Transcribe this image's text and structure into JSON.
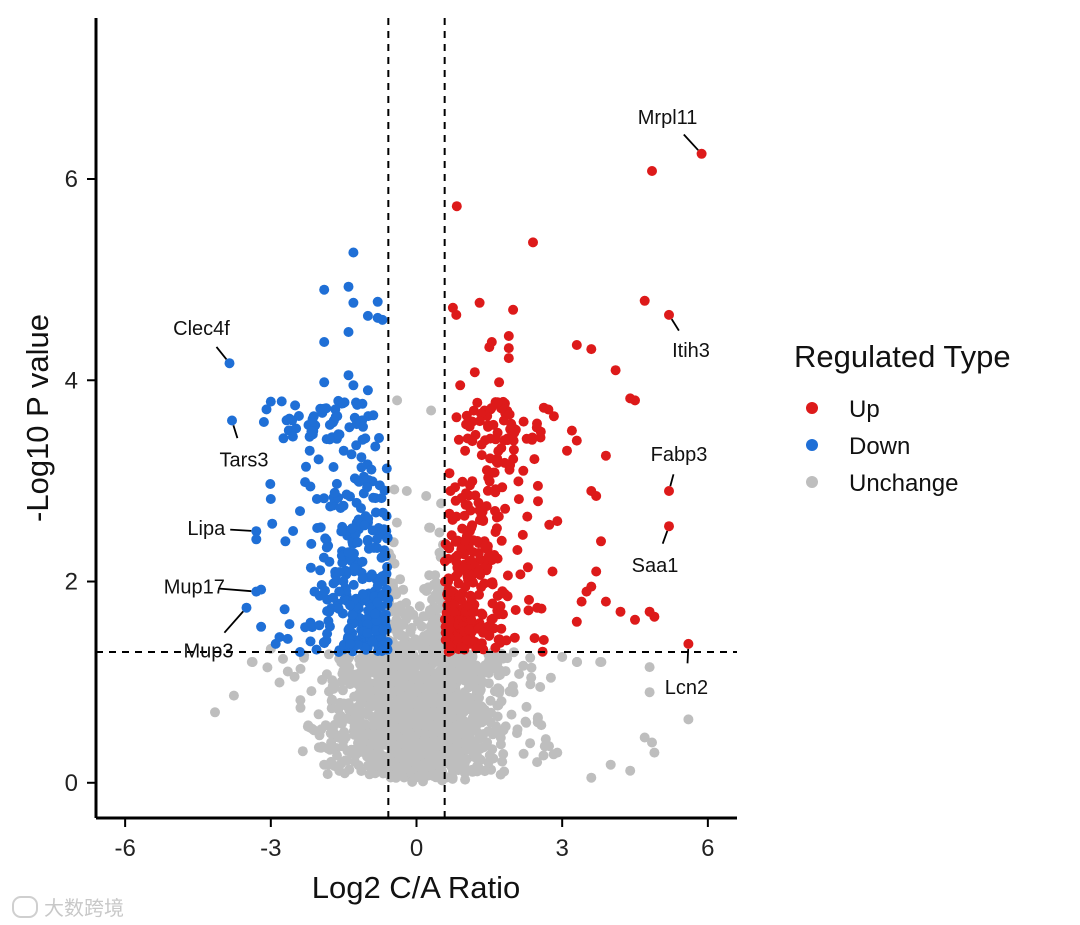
{
  "chart_data": {
    "type": "scatter",
    "subtype": "volcano",
    "xlabel": "Log2 C/A Ratio",
    "ylabel": "-Log10 P value",
    "xlim": [
      -6.6,
      6.6
    ],
    "ylim": [
      -0.35,
      7.6
    ],
    "x_ticks": [
      -6,
      -3,
      0,
      3,
      6
    ],
    "x_tick_labels": [
      "-6",
      "-3",
      "0",
      "3",
      "6"
    ],
    "y_ticks": [
      0,
      2,
      4,
      6
    ],
    "y_tick_labels": [
      "0",
      "2",
      "4",
      "6"
    ],
    "thresholds": {
      "log2fc": [
        -0.58,
        0.58
      ],
      "neg_log10_p": 1.3
    },
    "legend": {
      "title": "Regulated Type",
      "position": "right",
      "entries": [
        {
          "name": "Up",
          "color": "#DD1A1A"
        },
        {
          "name": "Down",
          "color": "#1F6FD6"
        },
        {
          "name": "Unchange",
          "color": "#BEBEBE"
        }
      ]
    },
    "series": [
      {
        "name": "Up",
        "color": "#DD1A1A",
        "points": [
          [
            5.87,
            6.25
          ],
          [
            4.85,
            6.08
          ],
          [
            0.83,
            5.73
          ],
          [
            2.4,
            5.37
          ],
          [
            4.7,
            4.79
          ],
          [
            0.75,
            4.72
          ],
          [
            1.3,
            4.77
          ],
          [
            1.99,
            4.7
          ],
          [
            0.82,
            4.65
          ],
          [
            5.2,
            4.65
          ],
          [
            3.3,
            4.35
          ],
          [
            1.9,
            4.44
          ],
          [
            1.55,
            4.38
          ],
          [
            3.6,
            4.31
          ],
          [
            1.9,
            4.32
          ],
          [
            1.5,
            4.33
          ],
          [
            1.9,
            4.22
          ],
          [
            4.1,
            4.1
          ],
          [
            1.2,
            4.08
          ],
          [
            0.9,
            3.95
          ],
          [
            1.7,
            3.98
          ],
          [
            4.4,
            3.82
          ],
          [
            4.5,
            3.8
          ],
          [
            5.2,
            2.9
          ],
          [
            5.2,
            2.55
          ],
          [
            5.6,
            1.38
          ],
          [
            4.9,
            1.65
          ],
          [
            4.8,
            1.7
          ],
          [
            4.5,
            1.62
          ],
          [
            3.9,
            3.25
          ],
          [
            3.7,
            2.85
          ],
          [
            3.6,
            2.9
          ],
          [
            3.8,
            2.4
          ],
          [
            3.3,
            3.4
          ],
          [
            3.2,
            3.5
          ],
          [
            3.1,
            3.3
          ],
          [
            3.7,
            2.1
          ],
          [
            3.5,
            1.9
          ],
          [
            3.9,
            1.8
          ],
          [
            4.2,
            1.7
          ],
          [
            3.4,
            1.8
          ],
          [
            3.6,
            1.95
          ],
          [
            3.3,
            1.6
          ],
          [
            2.8,
            2.1
          ],
          [
            2.9,
            2.6
          ],
          [
            2.5,
            2.95
          ],
          [
            2.2,
            3.1
          ],
          [
            2.0,
            3.4
          ],
          [
            1.8,
            3.6
          ],
          [
            1.4,
            3.7
          ],
          [
            1.0,
            3.3
          ],
          [
            0.7,
            2.9
          ],
          [
            0.65,
            2.0
          ],
          [
            0.7,
            1.5
          ],
          [
            0.9,
            1.4
          ],
          [
            1.1,
            2.5
          ]
        ]
      },
      {
        "name": "Down",
        "color": "#1F6FD6",
        "points": [
          [
            -3.85,
            4.17
          ],
          [
            -3.8,
            3.6
          ],
          [
            -3.3,
            2.5
          ],
          [
            -3.3,
            2.42
          ],
          [
            -3.3,
            1.9
          ],
          [
            -3.2,
            1.92
          ],
          [
            -3.5,
            1.74
          ],
          [
            -3.2,
            1.55
          ],
          [
            -2.9,
            1.38
          ],
          [
            -1.3,
            5.27
          ],
          [
            -1.9,
            4.9
          ],
          [
            -1.4,
            4.93
          ],
          [
            -0.8,
            4.78
          ],
          [
            -1.0,
            4.64
          ],
          [
            -0.8,
            4.62
          ],
          [
            -0.7,
            4.6
          ],
          [
            -1.3,
            4.77
          ],
          [
            -1.4,
            4.48
          ],
          [
            -1.9,
            4.38
          ],
          [
            -1.4,
            4.05
          ],
          [
            -1.9,
            3.98
          ],
          [
            -1.3,
            3.95
          ],
          [
            -1.0,
            3.9
          ],
          [
            -2.5,
            3.75
          ],
          [
            -3.0,
            2.82
          ],
          [
            -2.6,
            3.5
          ],
          [
            -2.7,
            2.4
          ],
          [
            -2.4,
            1.3
          ],
          [
            -2.1,
            1.9
          ],
          [
            -2.4,
            2.7
          ],
          [
            -2.2,
            3.3
          ],
          [
            -1.7,
            3.6
          ],
          [
            -1.5,
            3.3
          ],
          [
            -1.2,
            3.0
          ],
          [
            -1.0,
            2.4
          ],
          [
            -0.8,
            1.6
          ],
          [
            -0.7,
            1.35
          ],
          [
            -1.6,
            1.3
          ]
        ]
      },
      {
        "name": "Unchange",
        "color": "#BEBEBE",
        "points": [
          [
            -4.15,
            0.7
          ],
          [
            -3.0,
            1.33
          ],
          [
            -2.2,
            0.55
          ],
          [
            -1.9,
            0.18
          ],
          [
            -1.5,
            0.42
          ],
          [
            -1.2,
            0.3
          ],
          [
            -0.5,
            0.6
          ],
          [
            -0.3,
            1.7
          ],
          [
            -0.4,
            3.8
          ],
          [
            -0.2,
            2.9
          ],
          [
            0.3,
            3.7
          ],
          [
            0.2,
            2.85
          ],
          [
            0.35,
            1.6
          ],
          [
            0.1,
            0.4
          ],
          [
            -0.1,
            0.15
          ],
          [
            0.6,
            0.8
          ],
          [
            1.0,
            1.05
          ],
          [
            1.5,
            1.2
          ],
          [
            2.0,
            0.9
          ],
          [
            2.5,
            0.65
          ],
          [
            2.9,
            0.3
          ],
          [
            3.0,
            1.25
          ],
          [
            3.6,
            0.05
          ],
          [
            4.0,
            0.18
          ],
          [
            4.4,
            0.12
          ],
          [
            4.7,
            0.45
          ],
          [
            4.85,
            0.4
          ],
          [
            4.9,
            0.3
          ],
          [
            5.6,
            0.63
          ],
          [
            4.8,
            1.15
          ],
          [
            4.8,
            0.9
          ]
        ]
      }
    ],
    "labeled_genes": [
      {
        "name": "Mrpl11",
        "x": 5.87,
        "y": 6.25
      },
      {
        "name": "Itih3",
        "x": 5.2,
        "y": 4.65
      },
      {
        "name": "Fabp3",
        "x": 5.2,
        "y": 2.9
      },
      {
        "name": "Saa1",
        "x": 5.2,
        "y": 2.55
      },
      {
        "name": "Lcn2",
        "x": 5.6,
        "y": 1.38
      },
      {
        "name": "Clec4f",
        "x": -3.85,
        "y": 4.17
      },
      {
        "name": "Tars3",
        "x": -3.8,
        "y": 3.6
      },
      {
        "name": "Lipa",
        "x": -3.3,
        "y": 2.5
      },
      {
        "name": "Mup17",
        "x": -3.3,
        "y": 1.9
      },
      {
        "name": "Mup3",
        "x": -3.5,
        "y": 1.74
      }
    ]
  },
  "watermark": "大数跨境"
}
